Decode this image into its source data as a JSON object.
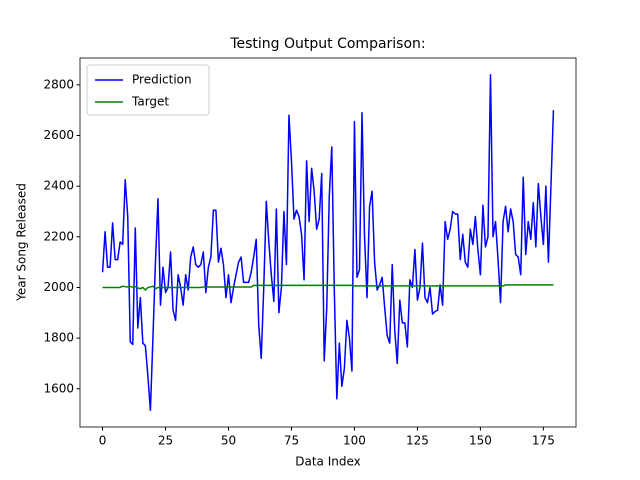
{
  "chart_data": {
    "type": "line",
    "title": "Testing Output Comparison:",
    "xlabel": "Data Index",
    "ylabel": "Year Song Released",
    "x": [
      0,
      1,
      2,
      3,
      4,
      5,
      6,
      7,
      8,
      9,
      10,
      11,
      12,
      13,
      14,
      15,
      16,
      17,
      18,
      19,
      20,
      21,
      22,
      23,
      24,
      25,
      26,
      27,
      28,
      29,
      30,
      31,
      32,
      33,
      34,
      35,
      36,
      37,
      38,
      39,
      40,
      41,
      42,
      43,
      44,
      45,
      46,
      47,
      48,
      49,
      50,
      51,
      52,
      53,
      54,
      55,
      56,
      57,
      58,
      59,
      60,
      61,
      62,
      63,
      64,
      65,
      66,
      67,
      68,
      69,
      70,
      71,
      72,
      73,
      74,
      75,
      76,
      77,
      78,
      79,
      80,
      81,
      82,
      83,
      84,
      85,
      86,
      87,
      88,
      89,
      90,
      91,
      92,
      93,
      94,
      95,
      96,
      97,
      98,
      99,
      100,
      101,
      102,
      103,
      104,
      105,
      106,
      107,
      108,
      109,
      110,
      111,
      112,
      113,
      114,
      115,
      116,
      117,
      118,
      119,
      120,
      121,
      122,
      123,
      124,
      125,
      126,
      127,
      128,
      129,
      130,
      131,
      132,
      133,
      134,
      135,
      136,
      137,
      138,
      139,
      140,
      141,
      142,
      143,
      144,
      145,
      146,
      147,
      148,
      149,
      150,
      151,
      152,
      153,
      154,
      155,
      156,
      157,
      158,
      159,
      160,
      161,
      162,
      163,
      164,
      165,
      166,
      167,
      168,
      169,
      170,
      171,
      172,
      173,
      174,
      175,
      176,
      177,
      178,
      179
    ],
    "series": [
      {
        "name": "Prediction",
        "color": "#0000ff",
        "values": [
          2060,
          2220,
          2080,
          2080,
          2255,
          2110,
          2110,
          2180,
          2170,
          2425,
          2280,
          1785,
          1775,
          2235,
          1840,
          1960,
          1780,
          1770,
          1650,
          1515,
          1800,
          2100,
          2350,
          1930,
          2080,
          1980,
          2000,
          2140,
          1910,
          1870,
          2050,
          2000,
          1930,
          2050,
          1990,
          2120,
          2160,
          2090,
          2080,
          2090,
          2140,
          1980,
          2080,
          2120,
          2305,
          2305,
          2100,
          2155,
          2090,
          1960,
          2050,
          1940,
          2000,
          2050,
          2100,
          2120,
          2020,
          2020,
          2020,
          2060,
          2120,
          2190,
          1850,
          1720,
          2000,
          2340,
          2180,
          2050,
          1945,
          2310,
          1900,
          2000,
          2300,
          2090,
          2680,
          2500,
          2270,
          2305,
          2280,
          2210,
          2030,
          2500,
          2260,
          2470,
          2380,
          2230,
          2270,
          2450,
          1710,
          1920,
          2360,
          2555,
          1990,
          1560,
          1780,
          1610,
          1680,
          1870,
          1800,
          1670,
          2655,
          2040,
          2070,
          2690,
          2200,
          1960,
          2320,
          2380,
          2100,
          1990,
          2010,
          2040,
          1920,
          1810,
          1780,
          2090,
          1830,
          1700,
          1950,
          1860,
          1860,
          1765,
          2030,
          2000,
          2150,
          1950,
          2000,
          2175,
          1960,
          1940,
          2000,
          1895,
          1905,
          1910,
          2010,
          1930,
          2260,
          2190,
          2230,
          2300,
          2290,
          2290,
          2110,
          2210,
          2100,
          2080,
          2230,
          2170,
          2280,
          2150,
          2050,
          2325,
          2160,
          2200,
          2840,
          2200,
          2260,
          2110,
          1940,
          2260,
          2320,
          2220,
          2310,
          2260,
          2130,
          2120,
          2050,
          2435,
          2130,
          2260,
          2190,
          2335,
          2160,
          2410,
          2280,
          2170,
          2400,
          2100,
          2400,
          2700
        ]
      },
      {
        "name": "Target",
        "color": "#008000",
        "values": [
          2000,
          2000,
          2000,
          2000,
          2000,
          2000,
          2000,
          2000,
          2005,
          2003,
          2002,
          2004,
          2001,
          2003,
          1998,
          1995,
          2000,
          1990,
          2000,
          2002,
          2005,
          1995,
          2000,
          2000,
          2000,
          2000,
          2000,
          2000,
          2000,
          2000,
          2000,
          2000,
          2000,
          2000,
          2000,
          2000,
          2000,
          2000,
          2000,
          2000,
          2002,
          2002,
          2002,
          2002,
          2002,
          2002,
          2002,
          2002,
          2002,
          2002,
          2002,
          2002,
          2002,
          2002,
          2002,
          2002,
          2002,
          2002,
          2002,
          2002,
          2008,
          2008,
          2008,
          2008,
          2008,
          2008,
          2008,
          2008,
          2008,
          2008,
          2008,
          2008,
          2008,
          2008,
          2008,
          2008,
          2008,
          2008,
          2008,
          2008,
          2008,
          2008,
          2008,
          2008,
          2008,
          2008,
          2008,
          2008,
          2008,
          2008,
          2008,
          2008,
          2008,
          2008,
          2008,
          2008,
          2008,
          2008,
          2008,
          2008,
          2006,
          2006,
          2006,
          2006,
          2006,
          2006,
          2006,
          2006,
          2006,
          2006,
          2006,
          2006,
          2006,
          2006,
          2006,
          2006,
          2006,
          2006,
          2006,
          2006,
          2006,
          2006,
          2006,
          2006,
          2006,
          2006,
          2006,
          2006,
          2006,
          2006,
          2006,
          2006,
          2006,
          2006,
          2006,
          2006,
          2006,
          2006,
          2006,
          2006,
          2006,
          2006,
          2006,
          2006,
          2006,
          2006,
          2006,
          2006,
          2006,
          2006,
          2006,
          2006,
          2006,
          2006,
          2006,
          2006,
          2006,
          2006,
          2006,
          2006,
          2010,
          2010,
          2010,
          2010,
          2010,
          2010,
          2010,
          2010,
          2010,
          2010,
          2010,
          2010,
          2010,
          2010,
          2010,
          2010,
          2010,
          2010,
          2010,
          2010
        ]
      }
    ],
    "xlim": [
      -8.95,
      187.95
    ],
    "xticks": [
      0,
      25,
      50,
      75,
      100,
      125,
      150,
      175
    ],
    "ylim": [
      1449,
      2906
    ],
    "yticks": [
      1600,
      1800,
      2000,
      2200,
      2400,
      2600,
      2800
    ],
    "legend": "upper left",
    "grid": false
  }
}
